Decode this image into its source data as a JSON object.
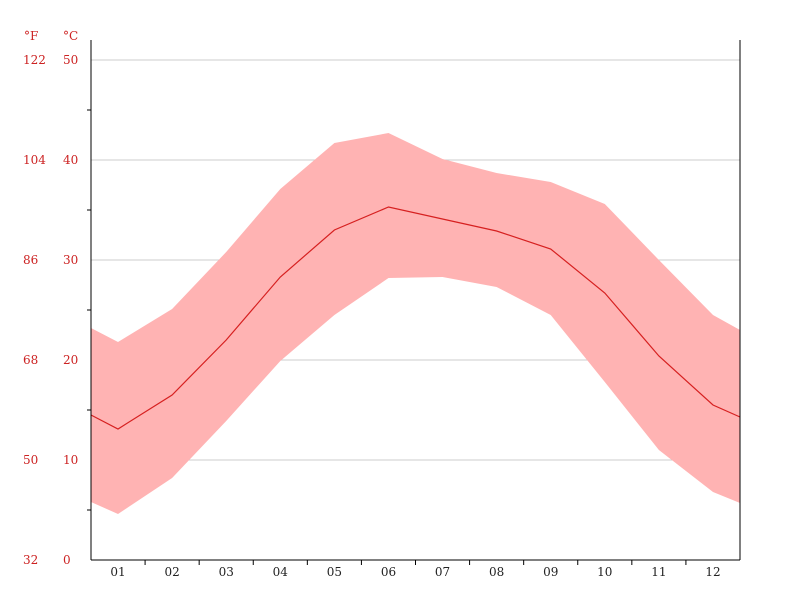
{
  "chart_data": {
    "type": "area",
    "categories": [
      "01",
      "02",
      "03",
      "04",
      "05",
      "06",
      "07",
      "08",
      "09",
      "10",
      "11",
      "12"
    ],
    "y_unit_left": "°F",
    "y_unit_right": "°C",
    "y_ticks_f": [
      "32",
      "50",
      "68",
      "86",
      "104",
      "122"
    ],
    "y_ticks_c": [
      "0",
      "10",
      "20",
      "30",
      "40",
      "50"
    ],
    "ylim": [
      0,
      50
    ],
    "grid": true,
    "colors": {
      "band": "#ffb3b3",
      "line": "#d62020",
      "tick_text": "#cc2222",
      "grid": "#cccccc"
    },
    "series": [
      {
        "values": [
          13.1,
          16.5,
          22.0,
          28.3,
          33.0,
          35.3,
          34.1,
          32.9,
          31.1,
          26.7,
          20.4,
          15.5
        ]
      },
      {
        "values": [
          21.8,
          25.1,
          30.8,
          37.1,
          41.7,
          42.7,
          40.1,
          38.7,
          37.8,
          35.6,
          30.0,
          24.5
        ]
      },
      {
        "values": [
          4.6,
          8.2,
          13.9,
          19.9,
          24.5,
          28.2,
          28.3,
          27.3,
          24.5,
          17.8,
          11.0,
          6.8
        ]
      }
    ],
    "edge_values": {
      "start": {
        "mean": 14.5,
        "max": 23.2,
        "min": 5.8
      },
      "end": {
        "mean": 14.3,
        "max": 23.0,
        "min": 5.7
      }
    }
  }
}
